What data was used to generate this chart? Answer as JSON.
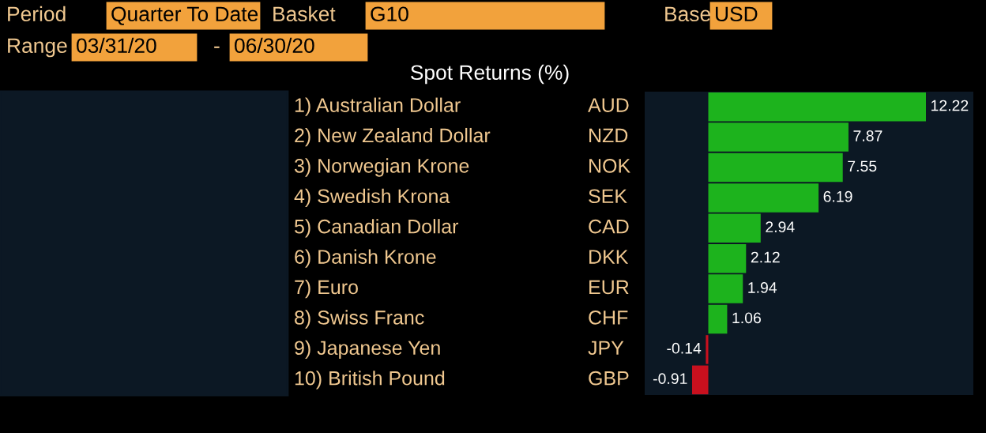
{
  "chart_data": {
    "type": "bar",
    "orientation": "horizontal",
    "title": "Spot Returns (%)",
    "categories": [
      "1) Australian Dollar",
      "2) New Zealand Dollar",
      "3) Norwegian Krone",
      "4) Swedish Krona",
      "5) Canadian Dollar",
      "6) Danish Krone",
      "7) Euro",
      "8) Swiss Franc",
      "9) Japanese Yen",
      "10) British Pound"
    ],
    "values": [
      12.22,
      7.87,
      7.55,
      6.19,
      2.94,
      2.12,
      1.94,
      1.06,
      -0.14,
      -0.91
    ],
    "colors": [
      "#1db31d",
      "#1db31d",
      "#1db31d",
      "#1db31d",
      "#1db31d",
      "#1db31d",
      "#1db31d",
      "#1db31d",
      "#c8101e",
      "#c8101e"
    ],
    "data_labels": true,
    "annotations": [
      "AUD",
      "NZD",
      "NOK",
      "SEK",
      "CAD",
      "DKK",
      "EUR",
      "CHF",
      "JPY",
      "GBP",
      "Period",
      "Quarter To Date",
      "Basket",
      "G10",
      "Base",
      "USD",
      "Range",
      "03/31/20",
      "-",
      "06/30/20"
    ]
  }
}
